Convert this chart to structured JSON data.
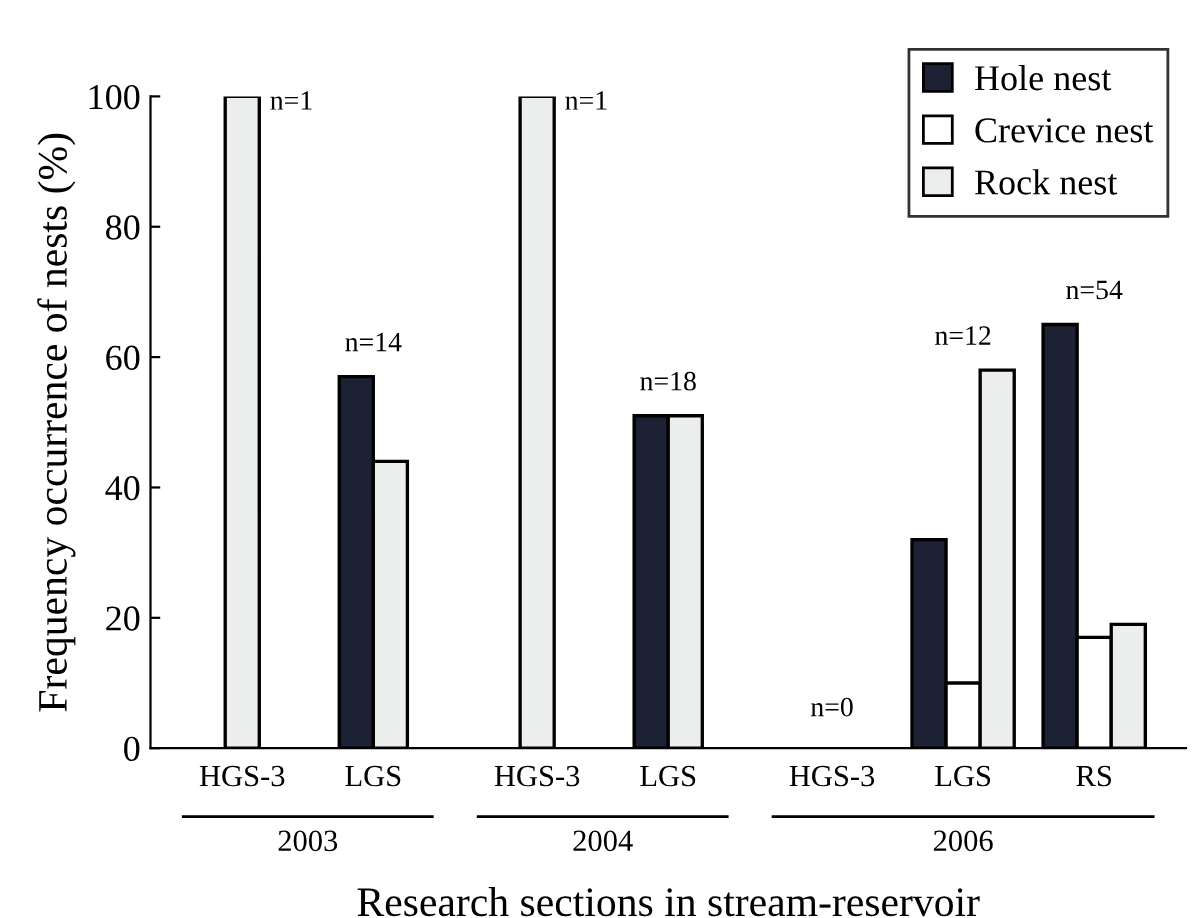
{
  "chart_data": {
    "type": "bar",
    "ylabel": "Frequency occurrence of nests (%)",
    "xlabel": "Research sections in stream-reservoir",
    "categories": [
      "HGS-3",
      "LGS",
      "HGS-3",
      "LGS",
      "HGS-3",
      "LGS",
      "RS"
    ],
    "series": [
      {
        "name": "Hole nest",
        "color": "#1c2233",
        "values": [
          null,
          57,
          null,
          51,
          null,
          32,
          65
        ]
      },
      {
        "name": "Crevice nest",
        "color": "#ffffff",
        "values": [
          null,
          null,
          null,
          null,
          null,
          10,
          17
        ]
      },
      {
        "name": "Rock nest",
        "color": "#eceeee",
        "values": [
          100,
          44,
          100,
          51,
          null,
          58,
          19
        ]
      }
    ],
    "annotations": [
      "n=1",
      "n=14",
      "n=1",
      "n=18",
      "n=0",
      "n=12",
      "n=54",
      "2003",
      "2004",
      "2006"
    ],
    "ylim": [
      0,
      100
    ],
    "yticks": [
      0,
      20,
      40,
      60,
      80,
      100
    ],
    "grid": false,
    "legend": "top right"
  }
}
